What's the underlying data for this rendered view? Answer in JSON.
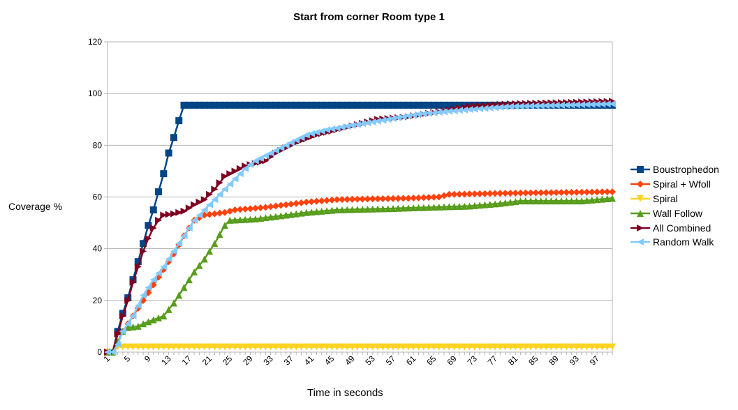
{
  "chart_data": {
    "type": "line",
    "title": "Start from corner Room type 1",
    "xlabel": "Time in seconds",
    "ylabel": "Coverage %",
    "ylim": [
      0,
      120
    ],
    "yticks": [
      0,
      20,
      40,
      60,
      80,
      100,
      120
    ],
    "xlim": [
      1,
      100
    ],
    "xticks": [
      1,
      5,
      9,
      13,
      17,
      21,
      25,
      29,
      33,
      37,
      41,
      45,
      49,
      53,
      57,
      61,
      65,
      69,
      73,
      77,
      81,
      85,
      89,
      93,
      97
    ],
    "grid": "horizontal",
    "legend_position": "right",
    "series": [
      {
        "name": "Boustrophedon",
        "color": "#004586",
        "marker": "square",
        "anchors": [
          [
            1,
            0
          ],
          [
            2,
            0
          ],
          [
            3,
            8
          ],
          [
            4,
            15
          ],
          [
            5,
            21
          ],
          [
            6,
            28
          ],
          [
            7,
            35
          ],
          [
            8,
            42
          ],
          [
            9,
            49
          ],
          [
            10,
            55
          ],
          [
            11,
            62
          ],
          [
            12,
            69
          ],
          [
            13,
            77
          ],
          [
            14,
            83
          ],
          [
            15,
            89.5
          ],
          [
            16,
            95.5
          ],
          [
            100,
            95.5
          ]
        ]
      },
      {
        "name": "Spiral + Wfoll",
        "color": "#ff420e",
        "marker": "diamond",
        "anchors": [
          [
            1,
            0
          ],
          [
            2,
            0
          ],
          [
            3,
            3
          ],
          [
            4,
            8
          ],
          [
            6,
            14
          ],
          [
            8,
            20
          ],
          [
            10,
            26
          ],
          [
            12,
            32
          ],
          [
            14,
            38
          ],
          [
            16,
            45
          ],
          [
            18,
            51
          ],
          [
            20,
            53
          ],
          [
            24,
            54
          ],
          [
            26,
            55
          ],
          [
            32,
            56
          ],
          [
            40,
            58
          ],
          [
            46,
            59
          ],
          [
            60,
            59.5
          ],
          [
            66,
            60
          ],
          [
            68,
            61
          ],
          [
            80,
            61.5
          ],
          [
            100,
            62
          ]
        ]
      },
      {
        "name": "Spiral",
        "color": "#ffd320",
        "marker": "triangle-down",
        "anchors": [
          [
            1,
            0
          ],
          [
            2,
            0
          ],
          [
            3,
            2
          ],
          [
            100,
            2
          ]
        ]
      },
      {
        "name": "Wall Follow",
        "color": "#579d1c",
        "marker": "triangle-up",
        "anchors": [
          [
            1,
            0
          ],
          [
            2,
            0
          ],
          [
            3,
            4
          ],
          [
            4,
            8
          ],
          [
            5,
            9.5
          ],
          [
            7,
            10
          ],
          [
            8,
            11
          ],
          [
            10,
            12.5
          ],
          [
            12,
            14
          ],
          [
            14,
            19
          ],
          [
            16,
            25
          ],
          [
            18,
            31
          ],
          [
            20,
            36
          ],
          [
            22,
            42
          ],
          [
            24,
            49
          ],
          [
            25,
            51
          ],
          [
            30,
            51.5
          ],
          [
            36,
            53
          ],
          [
            40,
            54
          ],
          [
            46,
            55
          ],
          [
            56,
            55.5
          ],
          [
            64,
            56
          ],
          [
            72,
            56.5
          ],
          [
            78,
            57.5
          ],
          [
            82,
            58.5
          ],
          [
            94,
            58.5
          ],
          [
            100,
            59.5
          ]
        ]
      },
      {
        "name": "All Combined",
        "color": "#7e0021",
        "marker": "triangle-right",
        "anchors": [
          [
            1,
            0
          ],
          [
            2,
            0
          ],
          [
            3,
            7
          ],
          [
            4,
            14
          ],
          [
            5,
            20
          ],
          [
            6,
            27
          ],
          [
            7,
            33
          ],
          [
            8,
            39
          ],
          [
            9,
            44
          ],
          [
            10,
            48
          ],
          [
            11,
            51
          ],
          [
            12,
            53
          ],
          [
            14,
            53.5
          ],
          [
            16,
            54.5
          ],
          [
            18,
            57
          ],
          [
            20,
            59
          ],
          [
            22,
            63
          ],
          [
            24,
            68
          ],
          [
            26,
            70
          ],
          [
            28,
            72
          ],
          [
            32,
            74
          ],
          [
            34,
            77
          ],
          [
            38,
            81
          ],
          [
            42,
            84
          ],
          [
            46,
            86
          ],
          [
            50,
            88
          ],
          [
            54,
            90
          ],
          [
            60,
            91
          ],
          [
            66,
            93
          ],
          [
            72,
            95
          ],
          [
            80,
            96
          ],
          [
            90,
            96.5
          ],
          [
            100,
            97
          ]
        ]
      },
      {
        "name": "Random Walk",
        "color": "#83caff",
        "marker": "triangle-left",
        "anchors": [
          [
            1,
            0
          ],
          [
            2,
            0
          ],
          [
            3,
            3
          ],
          [
            4,
            8
          ],
          [
            6,
            14
          ],
          [
            8,
            22
          ],
          [
            10,
            28
          ],
          [
            12,
            33
          ],
          [
            14,
            39
          ],
          [
            16,
            45
          ],
          [
            18,
            51
          ],
          [
            20,
            55
          ],
          [
            22,
            59
          ],
          [
            24,
            63
          ],
          [
            26,
            67
          ],
          [
            28,
            71
          ],
          [
            30,
            74
          ],
          [
            32,
            76
          ],
          [
            36,
            80
          ],
          [
            40,
            84
          ],
          [
            44,
            86
          ],
          [
            50,
            88
          ],
          [
            56,
            90
          ],
          [
            62,
            92
          ],
          [
            70,
            93.5
          ],
          [
            80,
            95
          ],
          [
            90,
            95.5
          ],
          [
            100,
            96
          ]
        ]
      }
    ]
  }
}
